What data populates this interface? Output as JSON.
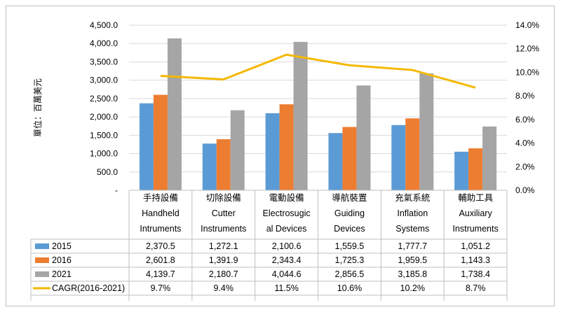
{
  "chart_data": {
    "type": "bar",
    "ylabel": "單位：百萬美元",
    "categories": [
      [
        "手持設備",
        "Handheld",
        "Intruments"
      ],
      [
        "切除設備",
        "Cutter",
        "Instruments"
      ],
      [
        "電動設備",
        "Electrosugic",
        "al Devices"
      ],
      [
        "導航裝置",
        "Guiding",
        "Devices"
      ],
      [
        "充氣系統",
        "Inflation",
        "Systems"
      ],
      [
        "輔助工具",
        "Auxiliary",
        "Instruments"
      ]
    ],
    "series": [
      {
        "name": "2015",
        "type": "bar",
        "axis": "left",
        "color": "#5b9bd5",
        "values": [
          2370.5,
          1272.1,
          2100.6,
          1559.5,
          1777.7,
          1051.2
        ],
        "labels": [
          "2,370.5",
          "1,272.1",
          "2,100.6",
          "1,559.5",
          "1,777.7",
          "1,051.2"
        ]
      },
      {
        "name": "2016",
        "type": "bar",
        "axis": "left",
        "color": "#ed7d31",
        "values": [
          2601.8,
          1391.9,
          2343.4,
          1725.3,
          1959.5,
          1143.3
        ],
        "labels": [
          "2,601.8",
          "1,391.9",
          "2,343.4",
          "1,725.3",
          "1,959.5",
          "1,143.3"
        ]
      },
      {
        "name": "2021",
        "type": "bar",
        "axis": "left",
        "color": "#a5a5a5",
        "values": [
          4139.7,
          2180.7,
          4044.6,
          2856.5,
          3185.8,
          1738.4
        ],
        "labels": [
          "4,139.7",
          "2,180.7",
          "4,044.6",
          "2,856.5",
          "3,185.8",
          "1,738.4"
        ]
      },
      {
        "name": "CAGR(2016-2021)",
        "type": "line",
        "axis": "right",
        "color": "#f5b800",
        "values": [
          9.7,
          9.4,
          11.5,
          10.6,
          10.2,
          8.7
        ],
        "labels": [
          "9.7%",
          "9.4%",
          "11.5%",
          "10.6%",
          "10.2%",
          "8.7%"
        ]
      }
    ],
    "ylim": [
      0,
      4500
    ],
    "y2lim": [
      0,
      14
    ],
    "yticks": [
      "-",
      "500.0",
      "1,000.0",
      "1,500.0",
      "2,000.0",
      "2,500.0",
      "3,000.0",
      "3,500.0",
      "4,000.0",
      "4,500.0"
    ],
    "y2ticks": [
      "0.0%",
      "2.0%",
      "4.0%",
      "6.0%",
      "8.0%",
      "10.0%",
      "12.0%",
      "14.0%"
    ],
    "grid": true,
    "legend": "data table below chart"
  }
}
